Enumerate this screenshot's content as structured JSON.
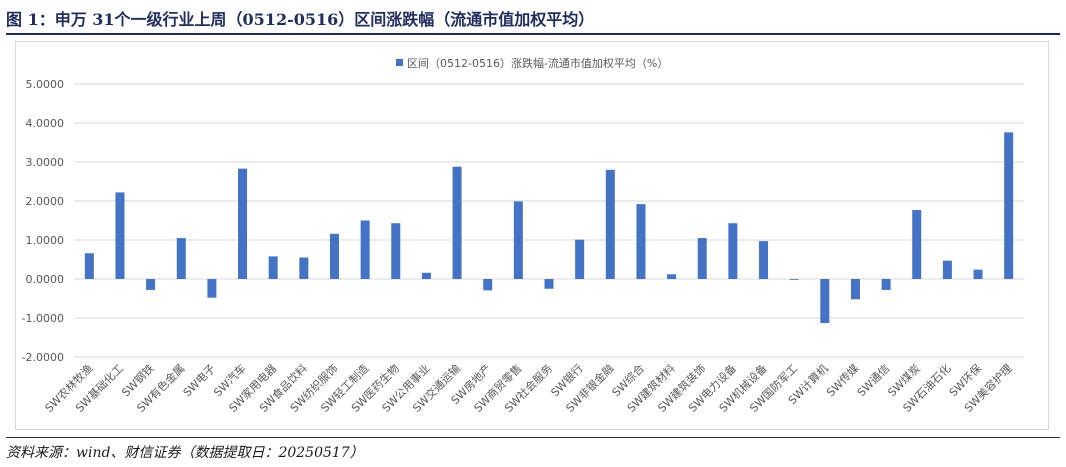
{
  "figure": {
    "title": "图 1：申万 31个一级行业上周（0512-0516）区间涨跌幅（流通市值加权平均）",
    "source": "资料来源：wind、财信证券（数据提取日：20250517）"
  },
  "colors": {
    "bar": "#4472c4",
    "grid": "#d9d9d9",
    "text": "#595959",
    "title": "#1f2d5c"
  },
  "chart_data": {
    "type": "bar",
    "title": "",
    "xlabel": "",
    "ylabel": "",
    "ylim": [
      -2,
      5
    ],
    "yticks": [
      "5.0000",
      "4.0000",
      "3.0000",
      "2.0000",
      "1.0000",
      "0.0000",
      "-1.0000",
      "-2.0000"
    ],
    "grid": true,
    "legend_position": "top-center",
    "categories": [
      "SW农林牧渔",
      "SW基础化工",
      "SW钢铁",
      "SW有色金属",
      "SW电子",
      "SW汽车",
      "SW家用电器",
      "SW食品饮料",
      "SW纺织服饰",
      "SW轻工制造",
      "SW医药生物",
      "SW公用事业",
      "SW交通运输",
      "SW房地产",
      "SW商贸零售",
      "SW社会服务",
      "SW银行",
      "SW非银金融",
      "SW综合",
      "SW建筑材料",
      "SW建筑装饰",
      "SW电力设备",
      "SW机械设备",
      "SW国防军工",
      "SW计算机",
      "SW传媒",
      "SW通信",
      "SW煤炭",
      "SW石油石化",
      "SW环保",
      "SW美容护理"
    ],
    "series": [
      {
        "name": "区间（0512-0516）涨跌幅-流通市值加权平均（%）",
        "values": [
          0.66,
          2.22,
          -0.28,
          1.05,
          -0.48,
          2.83,
          0.58,
          0.55,
          1.16,
          1.5,
          1.43,
          0.16,
          2.88,
          -0.29,
          1.99,
          -0.25,
          1.01,
          2.8,
          1.92,
          0.12,
          1.05,
          1.43,
          0.97,
          -0.02,
          -1.13,
          -0.52,
          -0.28,
          1.77,
          0.47,
          0.24,
          3.76
        ]
      }
    ]
  }
}
